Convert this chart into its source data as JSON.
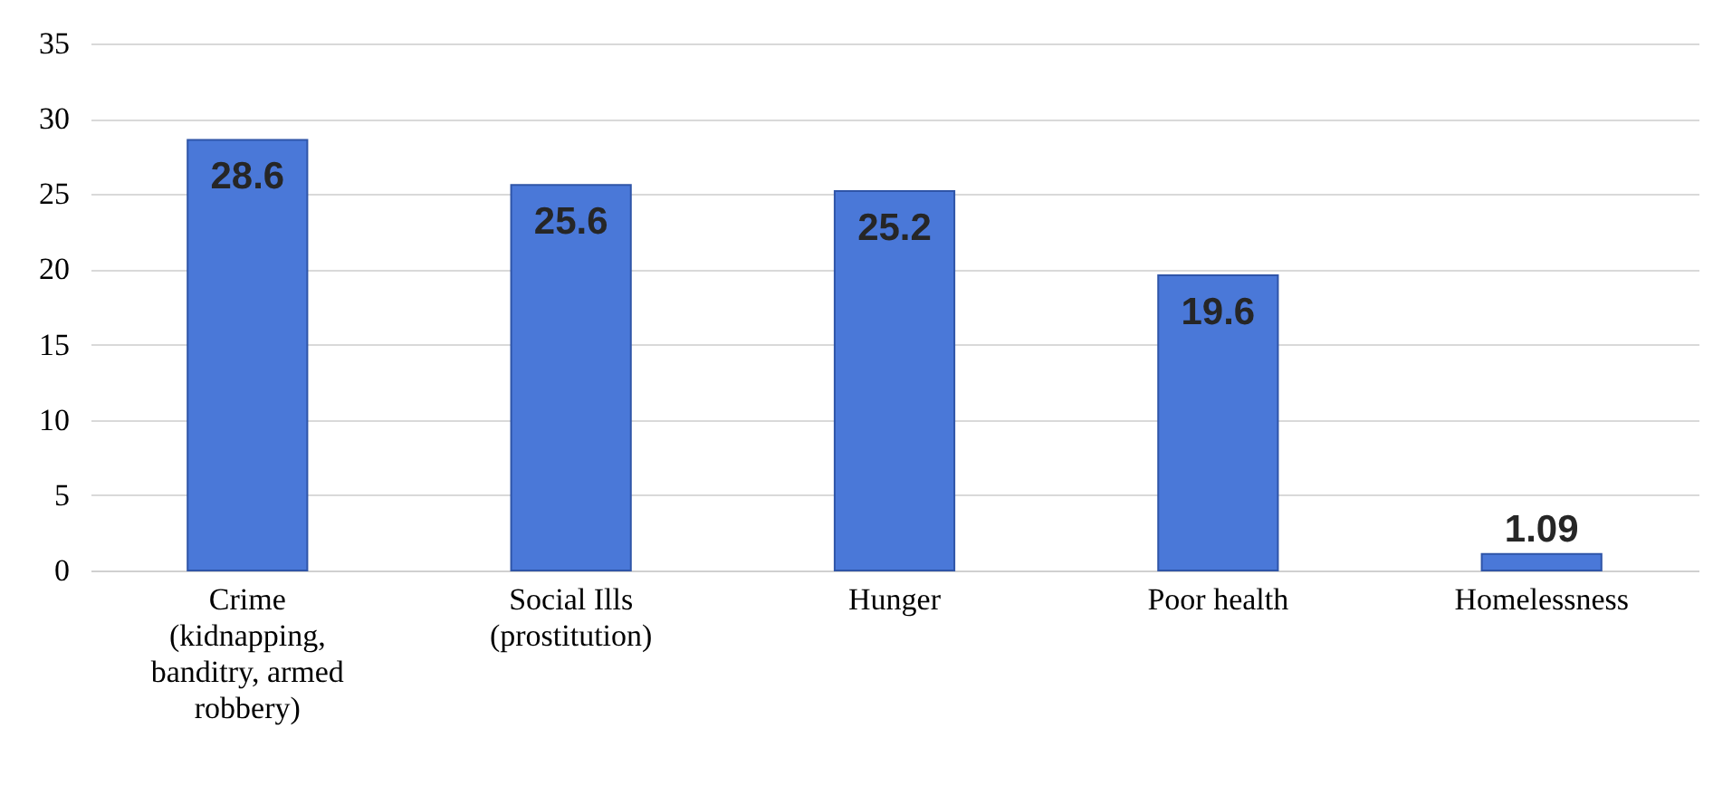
{
  "chart_data": {
    "type": "bar",
    "categories": [
      "Crime (kidnapping, banditry, armed robbery)",
      "Social Ills (prostitution)",
      "Hunger",
      "Poor health",
      "Homelessness"
    ],
    "values": [
      28.6,
      25.6,
      25.2,
      19.6,
      1.09
    ],
    "color": "#4a78d8",
    "ylim": [
      0,
      35
    ],
    "yticks": [
      0,
      5,
      10,
      15,
      20,
      25,
      30,
      35
    ],
    "grid": true,
    "data_labels": true
  }
}
